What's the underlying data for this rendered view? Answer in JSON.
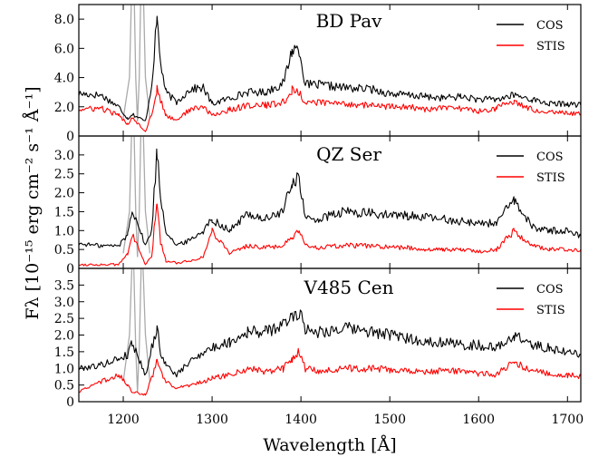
{
  "figure": {
    "xlabel": "Wavelength [Å]",
    "ylabel": "Fλ [10⁻¹⁵ erg cm⁻² s⁻¹ Å⁻¹]",
    "xlim": [
      1150,
      1715
    ],
    "xticks": [
      1200,
      1300,
      1400,
      1500,
      1600,
      1700
    ],
    "series_colors": {
      "COS": "#000000",
      "STIS": "#ff0000",
      "geocoronal": "#aaaaaa"
    }
  },
  "legend": {
    "cos_label": "COS",
    "stis_label": "STIS"
  },
  "panels": [
    {
      "title": "BD Pav",
      "ylim": [
        0,
        9
      ],
      "yticks": [
        "0",
        "2.0",
        "4.0",
        "6.0",
        "8.0"
      ],
      "ytick_values": [
        0,
        2,
        4,
        6,
        8
      ]
    },
    {
      "title": "QZ Ser",
      "ylim": [
        0,
        3.5
      ],
      "yticks": [
        "0",
        "0.5",
        "1.0",
        "1.5",
        "2.0",
        "2.5",
        "3.0"
      ],
      "ytick_values": [
        0,
        0.5,
        1.0,
        1.5,
        2.0,
        2.5,
        3.0
      ]
    },
    {
      "title": "V485 Cen",
      "ylim": [
        0,
        4.0
      ],
      "yticks": [
        "0",
        "0.5",
        "1.0",
        "1.5",
        "2.0",
        "2.5",
        "3.0",
        "3.5"
      ],
      "ytick_values": [
        0,
        0.5,
        1.0,
        1.5,
        2.0,
        2.5,
        3.0,
        3.5
      ]
    }
  ],
  "chart_data": [
    {
      "type": "line",
      "title": "BD Pav",
      "xlabel": "Wavelength [Å]",
      "ylabel": "Fλ [10⁻¹⁵ erg cm⁻² s⁻¹ Å⁻¹]",
      "xlim": [
        1150,
        1715
      ],
      "ylim": [
        0,
        9
      ],
      "grid": false,
      "legend_position": "top-right",
      "x": [
        1150,
        1175,
        1195,
        1205,
        1210,
        1225,
        1232,
        1238,
        1242,
        1248,
        1260,
        1275,
        1290,
        1300,
        1320,
        1340,
        1360,
        1380,
        1390,
        1398,
        1405,
        1420,
        1450,
        1480,
        1500,
        1520,
        1540,
        1560,
        1580,
        1600,
        1620,
        1640,
        1660,
        1680,
        1700,
        1715
      ],
      "series": [
        {
          "name": "COS",
          "values": [
            2.9,
            2.8,
            2.0,
            1.2,
            1.5,
            1.0,
            3.5,
            8.0,
            5.0,
            3.0,
            2.3,
            3.2,
            3.3,
            2.2,
            2.6,
            3.0,
            3.0,
            3.6,
            5.9,
            6.0,
            3.5,
            3.5,
            3.3,
            3.2,
            2.9,
            2.8,
            2.7,
            2.6,
            2.7,
            2.5,
            2.5,
            2.8,
            2.5,
            2.2,
            2.2,
            2.1
          ]
        },
        {
          "name": "STIS",
          "values": [
            1.8,
            1.9,
            1.4,
            0.8,
            1.3,
            0.3,
            1.5,
            3.3,
            2.4,
            1.4,
            1.1,
            1.8,
            2.0,
            1.4,
            1.8,
            2.1,
            2.1,
            2.3,
            3.1,
            3.0,
            2.3,
            2.3,
            2.2,
            2.1,
            2.0,
            2.0,
            1.8,
            1.9,
            1.9,
            1.7,
            1.9,
            2.4,
            1.8,
            1.7,
            1.6,
            1.5
          ]
        }
      ]
    },
    {
      "type": "line",
      "title": "QZ Ser",
      "xlabel": "Wavelength [Å]",
      "ylabel": "Fλ [10⁻¹⁵ erg cm⁻² s⁻¹ Å⁻¹]",
      "xlim": [
        1150,
        1715
      ],
      "ylim": [
        0,
        3.5
      ],
      "grid": false,
      "legend_position": "top-right",
      "x": [
        1150,
        1175,
        1195,
        1205,
        1210,
        1225,
        1232,
        1238,
        1242,
        1248,
        1260,
        1275,
        1290,
        1300,
        1320,
        1340,
        1360,
        1380,
        1390,
        1398,
        1405,
        1420,
        1450,
        1480,
        1500,
        1520,
        1540,
        1560,
        1580,
        1600,
        1620,
        1640,
        1660,
        1680,
        1700,
        1715
      ],
      "series": [
        {
          "name": "COS",
          "values": [
            0.65,
            0.6,
            0.6,
            0.9,
            1.6,
            0.6,
            1.0,
            3.1,
            1.9,
            1.0,
            0.6,
            0.75,
            1.0,
            1.3,
            1.0,
            1.45,
            1.3,
            1.5,
            2.3,
            2.4,
            1.3,
            1.3,
            1.5,
            1.45,
            1.4,
            1.4,
            1.35,
            1.3,
            1.25,
            1.2,
            1.2,
            1.8,
            1.1,
            1.0,
            1.0,
            0.85
          ]
        },
        {
          "name": "STIS",
          "values": [
            0.1,
            0.1,
            0.1,
            0.4,
            0.9,
            0.1,
            0.3,
            1.8,
            0.7,
            0.2,
            0.15,
            0.2,
            0.3,
            1.0,
            0.4,
            0.6,
            0.55,
            0.6,
            0.8,
            0.95,
            0.6,
            0.55,
            0.6,
            0.6,
            0.55,
            0.55,
            0.5,
            0.5,
            0.5,
            0.45,
            0.5,
            1.0,
            0.6,
            0.5,
            0.5,
            0.5
          ]
        }
      ]
    },
    {
      "type": "line",
      "title": "V485 Cen",
      "xlabel": "Wavelength [Å]",
      "ylabel": "Fλ [10⁻¹⁵ erg cm⁻² s⁻¹ Å⁻¹]",
      "xlim": [
        1150,
        1715
      ],
      "ylim": [
        0,
        4.0
      ],
      "grid": false,
      "legend_position": "top-right",
      "x": [
        1150,
        1175,
        1195,
        1205,
        1210,
        1225,
        1232,
        1238,
        1242,
        1248,
        1260,
        1275,
        1290,
        1300,
        1320,
        1340,
        1360,
        1380,
        1390,
        1398,
        1405,
        1420,
        1450,
        1480,
        1500,
        1520,
        1540,
        1560,
        1580,
        1600,
        1620,
        1640,
        1660,
        1680,
        1700,
        1715
      ],
      "series": [
        {
          "name": "COS",
          "values": [
            1.0,
            1.1,
            1.3,
            1.4,
            1.8,
            0.8,
            1.6,
            2.2,
            1.5,
            1.1,
            0.8,
            1.2,
            1.5,
            1.6,
            1.8,
            2.1,
            2.1,
            2.3,
            2.6,
            2.7,
            2.2,
            2.1,
            2.2,
            2.1,
            2.0,
            1.9,
            1.8,
            1.8,
            1.7,
            1.7,
            1.6,
            2.0,
            1.7,
            1.6,
            1.5,
            1.4
          ]
        },
        {
          "name": "STIS",
          "values": [
            0.3,
            0.6,
            0.8,
            0.5,
            0.3,
            0.2,
            0.7,
            1.2,
            0.9,
            0.6,
            0.4,
            0.5,
            0.6,
            0.7,
            0.8,
            1.0,
            0.9,
            1.0,
            1.3,
            1.5,
            1.0,
            0.9,
            1.0,
            1.0,
            0.95,
            0.9,
            0.9,
            0.95,
            0.9,
            0.85,
            0.8,
            1.2,
            0.9,
            0.85,
            0.8,
            0.75
          ]
        }
      ]
    }
  ],
  "geocoronal_lines": [
    {
      "panel": 0,
      "x": [
        1200,
        1207,
        1211,
        1214,
        1216,
        1218,
        1221,
        1225,
        1230
      ],
      "y": [
        1.2,
        4.0,
        14,
        4.0,
        1.0,
        4.0,
        14,
        4.0,
        1.2
      ]
    },
    {
      "panel": 1,
      "x": [
        1200,
        1207,
        1211,
        1214,
        1216,
        1218,
        1221,
        1225,
        1230
      ],
      "y": [
        0.4,
        1.5,
        5.0,
        1.5,
        0.3,
        1.5,
        5.0,
        1.5,
        0.4
      ]
    },
    {
      "panel": 2,
      "x": [
        1200,
        1207,
        1211,
        1214,
        1216,
        1218,
        1221,
        1225,
        1230
      ],
      "y": [
        0.6,
        2.0,
        5.0,
        1.6,
        0.3,
        1.6,
        5.0,
        2.0,
        0.6
      ]
    }
  ]
}
